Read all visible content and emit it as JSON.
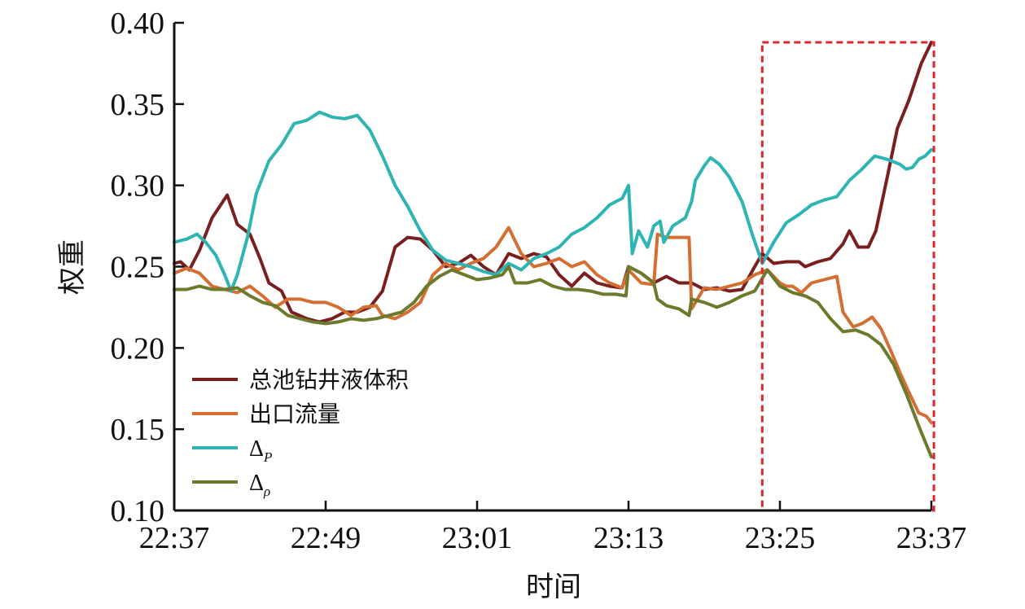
{
  "chart_data": {
    "type": "line",
    "xlabel": "时间",
    "ylabel": "权重",
    "ylim": [
      0.1,
      0.4
    ],
    "yticks": [
      "0.40",
      "0.35",
      "0.30",
      "0.25",
      "0.20",
      "0.15",
      "0.10"
    ],
    "xlim": [
      0,
      60
    ],
    "xticks": [
      {
        "x": 0,
        "label": "22:37"
      },
      {
        "x": 12,
        "label": "22:49"
      },
      {
        "x": 24,
        "label": "23:01"
      },
      {
        "x": 36,
        "label": "23:13"
      },
      {
        "x": 48,
        "label": "23:25"
      },
      {
        "x": 60,
        "label": "23:37"
      }
    ],
    "x_unit_note": "minutes after 22:37",
    "grid": false,
    "legend_position": "lower-left",
    "highlight_box": {
      "x_from": 46.6,
      "x_to": 60.2,
      "y_from": 0.1,
      "y_to": 0.388,
      "color": "#d9282f",
      "style": "dashed"
    },
    "series": [
      {
        "name": "总池钻井液体积",
        "color": "#7a1f1f",
        "points": [
          [
            0,
            0.252
          ],
          [
            0.5,
            0.253
          ],
          [
            1.2,
            0.248
          ],
          [
            2,
            0.26
          ],
          [
            3,
            0.28
          ],
          [
            4.2,
            0.294
          ],
          [
            5,
            0.276
          ],
          [
            6,
            0.27
          ],
          [
            6.8,
            0.255
          ],
          [
            7.5,
            0.24
          ],
          [
            8.5,
            0.235
          ],
          [
            9.3,
            0.222
          ],
          [
            10.5,
            0.218
          ],
          [
            11.5,
            0.216
          ],
          [
            12.5,
            0.218
          ],
          [
            13.5,
            0.222
          ],
          [
            14.5,
            0.222
          ],
          [
            15.5,
            0.225
          ],
          [
            16.5,
            0.235
          ],
          [
            17.5,
            0.262
          ],
          [
            18.5,
            0.268
          ],
          [
            19.5,
            0.267
          ],
          [
            20.5,
            0.26
          ],
          [
            21.5,
            0.25
          ],
          [
            22.5,
            0.252
          ],
          [
            23.5,
            0.257
          ],
          [
            24.5,
            0.25
          ],
          [
            25.5,
            0.245
          ],
          [
            26.5,
            0.258
          ],
          [
            27.5,
            0.255
          ],
          [
            28.5,
            0.258
          ],
          [
            29.5,
            0.256
          ],
          [
            30.5,
            0.245
          ],
          [
            31.5,
            0.238
          ],
          [
            32.5,
            0.246
          ],
          [
            33.5,
            0.24
          ],
          [
            34.5,
            0.238
          ],
          [
            35.5,
            0.237
          ],
          [
            36,
            0.25
          ],
          [
            37,
            0.246
          ],
          [
            38,
            0.24
          ],
          [
            39,
            0.244
          ],
          [
            40,
            0.24
          ],
          [
            41,
            0.24
          ],
          [
            42,
            0.236
          ],
          [
            43,
            0.237
          ],
          [
            44,
            0.235
          ],
          [
            45,
            0.236
          ],
          [
            46,
            0.25
          ],
          [
            46.6,
            0.258
          ],
          [
            47.5,
            0.252
          ],
          [
            48.5,
            0.253
          ],
          [
            49.5,
            0.253
          ],
          [
            50,
            0.25
          ],
          [
            51,
            0.253
          ],
          [
            52,
            0.255
          ],
          [
            53,
            0.264
          ],
          [
            53.5,
            0.272
          ],
          [
            54.2,
            0.262
          ],
          [
            55,
            0.262
          ],
          [
            55.6,
            0.272
          ],
          [
            56.5,
            0.305
          ],
          [
            57.3,
            0.335
          ],
          [
            58.2,
            0.352
          ],
          [
            59.2,
            0.375
          ],
          [
            60,
            0.388
          ]
        ]
      },
      {
        "name": "出口流量",
        "color": "#d46f34",
        "points": [
          [
            0,
            0.246
          ],
          [
            1,
            0.249
          ],
          [
            2,
            0.246
          ],
          [
            3,
            0.238
          ],
          [
            4,
            0.236
          ],
          [
            5,
            0.234
          ],
          [
            6,
            0.238
          ],
          [
            7,
            0.232
          ],
          [
            8,
            0.225
          ],
          [
            9,
            0.23
          ],
          [
            10,
            0.23
          ],
          [
            11,
            0.228
          ],
          [
            12,
            0.228
          ],
          [
            13,
            0.225
          ],
          [
            14,
            0.22
          ],
          [
            15,
            0.225
          ],
          [
            16,
            0.226
          ],
          [
            16.5,
            0.22
          ],
          [
            17.5,
            0.218
          ],
          [
            18.5,
            0.222
          ],
          [
            19.5,
            0.228
          ],
          [
            20.5,
            0.245
          ],
          [
            21.5,
            0.252
          ],
          [
            22.5,
            0.248
          ],
          [
            23.5,
            0.252
          ],
          [
            24.5,
            0.255
          ],
          [
            25.5,
            0.262
          ],
          [
            26.5,
            0.274
          ],
          [
            27.5,
            0.258
          ],
          [
            28.5,
            0.25
          ],
          [
            29.5,
            0.252
          ],
          [
            30.5,
            0.255
          ],
          [
            31.5,
            0.25
          ],
          [
            32.5,
            0.253
          ],
          [
            33.5,
            0.245
          ],
          [
            34.5,
            0.24
          ],
          [
            35.5,
            0.237
          ],
          [
            36,
            0.248
          ],
          [
            37,
            0.24
          ],
          [
            38,
            0.239
          ],
          [
            38.3,
            0.27
          ],
          [
            39,
            0.268
          ],
          [
            40,
            0.268
          ],
          [
            40.8,
            0.268
          ],
          [
            41,
            0.224
          ],
          [
            42,
            0.237
          ],
          [
            43,
            0.236
          ],
          [
            44,
            0.238
          ],
          [
            45,
            0.24
          ],
          [
            46,
            0.245
          ],
          [
            47,
            0.248
          ],
          [
            48,
            0.24
          ],
          [
            48.5,
            0.238
          ],
          [
            49,
            0.238
          ],
          [
            49.7,
            0.234
          ],
          [
            50.5,
            0.24
          ],
          [
            51.5,
            0.242
          ],
          [
            52.5,
            0.244
          ],
          [
            53,
            0.222
          ],
          [
            53.8,
            0.213
          ],
          [
            54.5,
            0.215
          ],
          [
            55.3,
            0.219
          ],
          [
            56,
            0.212
          ],
          [
            56.8,
            0.198
          ],
          [
            57.5,
            0.185
          ],
          [
            58.2,
            0.173
          ],
          [
            59,
            0.16
          ],
          [
            59.6,
            0.158
          ],
          [
            60,
            0.154
          ]
        ]
      },
      {
        "name": "Δ",
        "name_sub": "P",
        "color": "#2fb4b4",
        "points": [
          [
            0,
            0.265
          ],
          [
            1,
            0.267
          ],
          [
            1.8,
            0.27
          ],
          [
            2.5,
            0.265
          ],
          [
            3.3,
            0.257
          ],
          [
            4,
            0.245
          ],
          [
            4.5,
            0.235
          ],
          [
            5,
            0.245
          ],
          [
            5.8,
            0.268
          ],
          [
            6.5,
            0.295
          ],
          [
            7.5,
            0.315
          ],
          [
            8.5,
            0.325
          ],
          [
            9.5,
            0.338
          ],
          [
            10.5,
            0.34
          ],
          [
            11.5,
            0.345
          ],
          [
            12.5,
            0.342
          ],
          [
            13.5,
            0.341
          ],
          [
            14.5,
            0.343
          ],
          [
            15.5,
            0.334
          ],
          [
            16.5,
            0.318
          ],
          [
            17.5,
            0.3
          ],
          [
            18.5,
            0.287
          ],
          [
            19.5,
            0.272
          ],
          [
            20.5,
            0.26
          ],
          [
            21.5,
            0.254
          ],
          [
            22.5,
            0.252
          ],
          [
            23.5,
            0.25
          ],
          [
            24.5,
            0.247
          ],
          [
            25.5,
            0.245
          ],
          [
            26.5,
            0.252
          ],
          [
            27.5,
            0.248
          ],
          [
            28.5,
            0.255
          ],
          [
            29.5,
            0.258
          ],
          [
            30.5,
            0.262
          ],
          [
            31.5,
            0.27
          ],
          [
            32.5,
            0.274
          ],
          [
            33.5,
            0.28
          ],
          [
            34.5,
            0.288
          ],
          [
            35.5,
            0.292
          ],
          [
            36,
            0.3
          ],
          [
            36.3,
            0.258
          ],
          [
            36.8,
            0.272
          ],
          [
            37.5,
            0.262
          ],
          [
            38,
            0.275
          ],
          [
            38.5,
            0.278
          ],
          [
            38.8,
            0.265
          ],
          [
            39.5,
            0.275
          ],
          [
            40.5,
            0.28
          ],
          [
            41,
            0.29
          ],
          [
            41.3,
            0.303
          ],
          [
            42,
            0.312
          ],
          [
            42.5,
            0.317
          ],
          [
            43.2,
            0.313
          ],
          [
            44,
            0.305
          ],
          [
            45,
            0.29
          ],
          [
            45.8,
            0.27
          ],
          [
            46.6,
            0.252
          ],
          [
            47.5,
            0.265
          ],
          [
            48.5,
            0.277
          ],
          [
            49.5,
            0.282
          ],
          [
            50.5,
            0.288
          ],
          [
            51.5,
            0.291
          ],
          [
            52.5,
            0.293
          ],
          [
            53.5,
            0.303
          ],
          [
            54.5,
            0.31
          ],
          [
            55.5,
            0.318
          ],
          [
            56.5,
            0.316
          ],
          [
            57.5,
            0.313
          ],
          [
            58,
            0.31
          ],
          [
            58.5,
            0.311
          ],
          [
            59,
            0.316
          ],
          [
            59.5,
            0.318
          ],
          [
            60,
            0.322
          ]
        ]
      },
      {
        "name": "Δ",
        "name_sub": "ρ",
        "color": "#6b7a2c",
        "points": [
          [
            0,
            0.236
          ],
          [
            1,
            0.236
          ],
          [
            2,
            0.238
          ],
          [
            3,
            0.236
          ],
          [
            4,
            0.236
          ],
          [
            5,
            0.237
          ],
          [
            6,
            0.232
          ],
          [
            7,
            0.228
          ],
          [
            8,
            0.226
          ],
          [
            9,
            0.22
          ],
          [
            10,
            0.218
          ],
          [
            11,
            0.216
          ],
          [
            12,
            0.215
          ],
          [
            13,
            0.216
          ],
          [
            14,
            0.218
          ],
          [
            15,
            0.217
          ],
          [
            16,
            0.218
          ],
          [
            17,
            0.22
          ],
          [
            18,
            0.222
          ],
          [
            19,
            0.228
          ],
          [
            20,
            0.238
          ],
          [
            21,
            0.244
          ],
          [
            22,
            0.248
          ],
          [
            23,
            0.245
          ],
          [
            24,
            0.242
          ],
          [
            25,
            0.243
          ],
          [
            26,
            0.245
          ],
          [
            26.5,
            0.25
          ],
          [
            27,
            0.24
          ],
          [
            28,
            0.24
          ],
          [
            29,
            0.242
          ],
          [
            30,
            0.238
          ],
          [
            31,
            0.236
          ],
          [
            32,
            0.236
          ],
          [
            33,
            0.235
          ],
          [
            34,
            0.233
          ],
          [
            35,
            0.233
          ],
          [
            35.8,
            0.232
          ],
          [
            36,
            0.25
          ],
          [
            37,
            0.246
          ],
          [
            38,
            0.24
          ],
          [
            38.3,
            0.23
          ],
          [
            39,
            0.226
          ],
          [
            40,
            0.224
          ],
          [
            40.8,
            0.22
          ],
          [
            41,
            0.23
          ],
          [
            42,
            0.228
          ],
          [
            43,
            0.225
          ],
          [
            44,
            0.228
          ],
          [
            45,
            0.232
          ],
          [
            46,
            0.235
          ],
          [
            47,
            0.248
          ],
          [
            48,
            0.238
          ],
          [
            49,
            0.234
          ],
          [
            50,
            0.232
          ],
          [
            51,
            0.228
          ],
          [
            52,
            0.218
          ],
          [
            53,
            0.21
          ],
          [
            54,
            0.211
          ],
          [
            55,
            0.208
          ],
          [
            56,
            0.202
          ],
          [
            57,
            0.19
          ],
          [
            58,
            0.172
          ],
          [
            59,
            0.152
          ],
          [
            60,
            0.133
          ]
        ]
      }
    ]
  }
}
